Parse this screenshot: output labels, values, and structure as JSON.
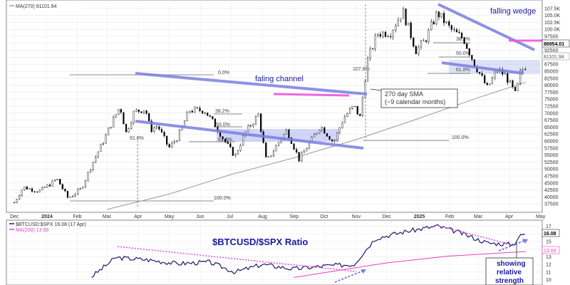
{
  "chart_data": [
    {
      "type": "candlestick",
      "title": "",
      "legend": [
        {
          "label": "MA(270) 81101.94",
          "color": "#888888"
        }
      ],
      "current_price_label": "86954.01",
      "ma_price_label": "81101.94",
      "x_ticks": [
        "Dec",
        "2024",
        "Feb",
        "Mar",
        "Apr",
        "May",
        "Jun",
        "Jul",
        "Aug",
        "Sep",
        "Oct",
        "Nov",
        "Dec",
        "2025",
        "Feb",
        "Mar",
        "Apr",
        "May"
      ],
      "y_ticks": [
        "107.5K",
        "105.0K",
        "102.5K",
        "100.0K",
        "97500",
        "95000",
        "92500",
        "90000",
        "87500",
        "85000",
        "82500",
        "80000",
        "77500",
        "75000",
        "72500",
        "70000",
        "67500",
        "65000",
        "62500",
        "60000",
        "57500",
        "55000",
        "52500",
        "50000",
        "47500",
        "45000",
        "42500",
        "40000",
        "37500"
      ],
      "ylim": [
        35000,
        110000
      ],
      "price_path": [
        {
          "date": "2023-12-01",
          "close": 38000
        },
        {
          "date": "2023-12-10",
          "close": 43500
        },
        {
          "date": "2023-12-25",
          "close": 42000
        },
        {
          "date": "2024-01-05",
          "close": 44500
        },
        {
          "date": "2024-01-12",
          "close": 46500
        },
        {
          "date": "2024-01-23",
          "close": 39500
        },
        {
          "date": "2024-02-05",
          "close": 43000
        },
        {
          "date": "2024-02-15",
          "close": 51500
        },
        {
          "date": "2024-02-28",
          "close": 61000
        },
        {
          "date": "2024-03-05",
          "close": 66000
        },
        {
          "date": "2024-03-14",
          "close": 72500
        },
        {
          "date": "2024-03-20",
          "close": 63000
        },
        {
          "date": "2024-03-28",
          "close": 70500
        },
        {
          "date": "2024-04-08",
          "close": 71500
        },
        {
          "date": "2024-04-13",
          "close": 64000
        },
        {
          "date": "2024-04-20",
          "close": 65500
        },
        {
          "date": "2024-05-01",
          "close": 57500
        },
        {
          "date": "2024-05-10",
          "close": 61500
        },
        {
          "date": "2024-05-21",
          "close": 71000
        },
        {
          "date": "2024-06-05",
          "close": 71000
        },
        {
          "date": "2024-06-15",
          "close": 66000
        },
        {
          "date": "2024-06-24",
          "close": 60500
        },
        {
          "date": "2024-07-05",
          "close": 54500
        },
        {
          "date": "2024-07-15",
          "close": 63000
        },
        {
          "date": "2024-07-28",
          "close": 69500
        },
        {
          "date": "2024-08-05",
          "close": 52500
        },
        {
          "date": "2024-08-15",
          "close": 58500
        },
        {
          "date": "2024-08-25",
          "close": 64000
        },
        {
          "date": "2024-09-06",
          "close": 53500
        },
        {
          "date": "2024-09-15",
          "close": 58500
        },
        {
          "date": "2024-09-27",
          "close": 65500
        },
        {
          "date": "2024-10-10",
          "close": 59500
        },
        {
          "date": "2024-10-20",
          "close": 68500
        },
        {
          "date": "2024-10-30",
          "close": 72500
        },
        {
          "date": "2024-11-05",
          "close": 68500
        },
        {
          "date": "2024-11-12",
          "close": 88500
        },
        {
          "date": "2024-11-22",
          "close": 98500
        },
        {
          "date": "2024-12-05",
          "close": 99000
        },
        {
          "date": "2024-12-17",
          "close": 106500
        },
        {
          "date": "2024-12-30",
          "close": 92500
        },
        {
          "date": "2025-01-08",
          "close": 96000
        },
        {
          "date": "2025-01-20",
          "close": 106000
        },
        {
          "date": "2025-02-02",
          "close": 100000
        },
        {
          "date": "2025-02-15",
          "close": 96500
        },
        {
          "date": "2025-02-25",
          "close": 88000
        },
        {
          "date": "2025-03-10",
          "close": 79000
        },
        {
          "date": "2025-03-20",
          "close": 85500
        },
        {
          "date": "2025-03-28",
          "close": 83500
        },
        {
          "date": "2025-04-07",
          "close": 76500
        },
        {
          "date": "2025-04-12",
          "close": 85000
        },
        {
          "date": "2025-04-17",
          "close": 86954
        }
      ],
      "ma270_path": [
        {
          "date": "2024-03-01",
          "close": 35500
        },
        {
          "date": "2024-05-01",
          "close": 41000
        },
        {
          "date": "2024-07-01",
          "close": 48000
        },
        {
          "date": "2024-09-01",
          "close": 54000
        },
        {
          "date": "2024-11-01",
          "close": 60500
        },
        {
          "date": "2025-01-01",
          "close": 68000
        },
        {
          "date": "2025-03-01",
          "close": 75500
        },
        {
          "date": "2025-04-17",
          "close": 81101.94
        }
      ],
      "annotations": {
        "falling_channel": "faling channel",
        "falling_wedge": "falling wedge",
        "sma_note_line1": "270 day SMA",
        "sma_note_line2": "(~9 calendar months)",
        "fib_2024": [
          "0.0%",
          "38.2%",
          "50.0%",
          "61.8%",
          "100.0%",
          "91.0%"
        ],
        "fib_2025": [
          "38.2%",
          "50.0%",
          "61.8%",
          "100.0%",
          "107.8%"
        ]
      }
    },
    {
      "type": "line",
      "title": "$BTCUSD/$SPX Ratio",
      "legend": [
        {
          "label": "$BTCUSD:$SPX 16.08 (17 Apr)",
          "color": "#1a1a6e"
        },
        {
          "label": "MA(200) 13.69",
          "color": "#e040c0"
        }
      ],
      "current_value_label": "16.08",
      "ma_value_label": "13.69",
      "y_ticks": [
        "17",
        "16",
        "15",
        "14",
        "13",
        "12",
        "11",
        "10"
      ],
      "ylim": [
        9.5,
        17.5
      ],
      "series": [
        {
          "values": [
            {
              "date": "2024-02-15",
              "value": 10.4
            },
            {
              "date": "2024-03-10",
              "value": 12.9
            },
            {
              "date": "2024-04-10",
              "value": 12.6
            },
            {
              "date": "2024-05-10",
              "value": 12.1
            },
            {
              "date": "2024-06-10",
              "value": 12.3
            },
            {
              "date": "2024-07-05",
              "value": 11.0
            },
            {
              "date": "2024-08-01",
              "value": 12.0
            },
            {
              "date": "2024-09-01",
              "value": 11.4
            },
            {
              "date": "2024-10-01",
              "value": 11.8
            },
            {
              "date": "2024-10-30",
              "value": 12.0
            },
            {
              "date": "2024-11-20",
              "value": 15.4
            },
            {
              "date": "2024-12-20",
              "value": 16.3
            },
            {
              "date": "2025-01-20",
              "value": 17.0
            },
            {
              "date": "2025-02-10",
              "value": 16.2
            },
            {
              "date": "2025-03-10",
              "value": 14.8
            },
            {
              "date": "2025-04-05",
              "value": 14.6
            },
            {
              "date": "2025-04-10",
              "value": 15.6
            },
            {
              "date": "2025-04-17",
              "value": 16.08
            }
          ]
        },
        {
          "values": [
            {
              "date": "2024-09-01",
              "value": 10.3
            },
            {
              "date": "2024-12-01",
              "value": 12.2
            },
            {
              "date": "2025-02-01",
              "value": 13.1
            },
            {
              "date": "2025-04-17",
              "value": 13.69
            }
          ]
        }
      ],
      "annotations": {
        "note_line1": "showing",
        "note_line2": "relative",
        "note_line3": "strength"
      }
    }
  ]
}
